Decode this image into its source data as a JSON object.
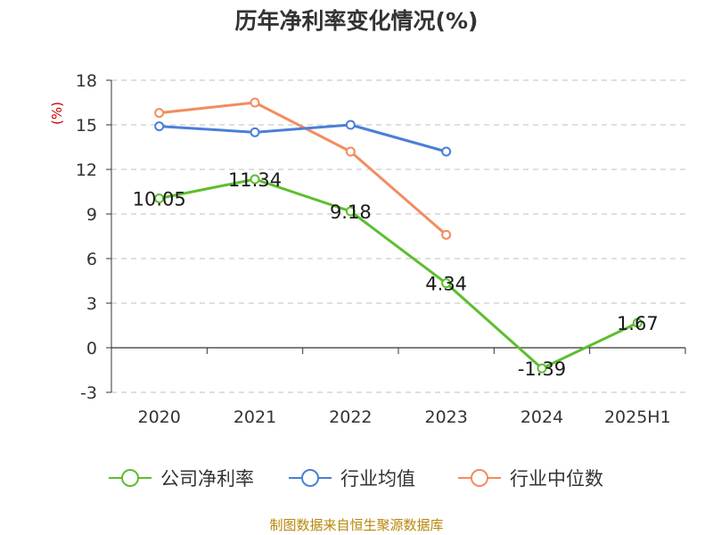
{
  "title": "历年净利率变化情况(%)",
  "source": "制图数据来自恒生聚源数据库",
  "colors": {
    "company": "#5dbe2e",
    "industry_avg": "#4a7fd6",
    "industry_median": "#f28c5e",
    "grid": "#cccccc",
    "axis": "#333333"
  },
  "chart_data": {
    "type": "line",
    "title": "历年净利率变化情况(%)",
    "ylabel": "(%)",
    "xlabel": "",
    "ylim": [
      -3,
      18
    ],
    "yticks": [
      -3,
      0,
      3,
      6,
      9,
      12,
      15,
      18
    ],
    "categories": [
      "2020",
      "2021",
      "2022",
      "2023",
      "2024",
      "2025H1"
    ],
    "grid": true,
    "legend_position": "bottom",
    "series": [
      {
        "name": "公司净利率",
        "color": "#5dbe2e",
        "values": [
          10.05,
          11.34,
          9.18,
          4.34,
          -1.39,
          1.67
        ],
        "labels": [
          "10.05",
          "11.34",
          "9.18",
          "4.34",
          "-1.39",
          "1.67"
        ]
      },
      {
        "name": "行业均值",
        "color": "#4a7fd6",
        "values": [
          14.9,
          14.5,
          15.0,
          13.2,
          null,
          null
        ]
      },
      {
        "name": "行业中位数",
        "color": "#f28c5e",
        "values": [
          15.8,
          16.5,
          13.2,
          7.6,
          null,
          null
        ]
      }
    ]
  }
}
